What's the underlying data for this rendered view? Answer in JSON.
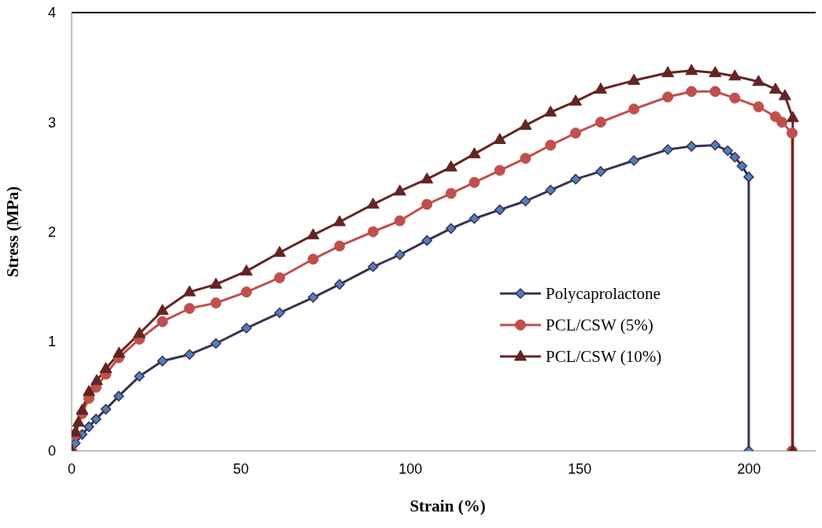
{
  "chart_data": {
    "type": "line",
    "xlabel": "Strain (%)",
    "ylabel": "Stress (MPa)",
    "xlim": [
      0,
      222
    ],
    "xticks": [
      0,
      50,
      100,
      150,
      200
    ],
    "ylim": [
      0,
      4
    ],
    "yticks": [
      0,
      1,
      2,
      3,
      4
    ],
    "grid": false,
    "legend": "center right",
    "series": [
      {
        "name": "Polycaprolactone",
        "color": "#3b3154",
        "marker": "diamond",
        "x": [
          0,
          1.1,
          3.1,
          5.1,
          7.2,
          10.1,
          13.9,
          20,
          26.8,
          34.8,
          42.6,
          51.6,
          61.4,
          71.3,
          79.1,
          89,
          96.9,
          104.9,
          112,
          118.9,
          126.4,
          134,
          141.4,
          148.8,
          156.2,
          166,
          176,
          183,
          190,
          193.7,
          195.8,
          197.9,
          199.9,
          199.9
        ],
        "values": [
          0,
          0.07,
          0.15,
          0.22,
          0.29,
          0.38,
          0.5,
          0.68,
          0.82,
          0.88,
          0.98,
          1.12,
          1.26,
          1.4,
          1.52,
          1.68,
          1.79,
          1.92,
          2.03,
          2.12,
          2.2,
          2.28,
          2.38,
          2.48,
          2.55,
          2.65,
          2.75,
          2.78,
          2.79,
          2.74,
          2.68,
          2.6,
          2.5,
          0
        ]
      },
      {
        "name": "PCL/CSW (5%)",
        "color": "#c0504d",
        "marker": "circle",
        "x": [
          0,
          1.1,
          3.1,
          5.1,
          7.2,
          10.1,
          13.9,
          20,
          26.8,
          34.8,
          42.6,
          51.6,
          61.4,
          71.3,
          79.1,
          89,
          96.9,
          104.9,
          112,
          118.9,
          126.4,
          134,
          141.4,
          148.8,
          156.2,
          166,
          176,
          183,
          190,
          195.8,
          202.8,
          207.8,
          209.7,
          212.7,
          212.7
        ],
        "values": [
          0,
          0.15,
          0.34,
          0.48,
          0.58,
          0.7,
          0.85,
          1.02,
          1.18,
          1.3,
          1.35,
          1.45,
          1.58,
          1.75,
          1.87,
          2.0,
          2.1,
          2.25,
          2.35,
          2.45,
          2.56,
          2.67,
          2.79,
          2.9,
          3.0,
          3.12,
          3.23,
          3.28,
          3.28,
          3.22,
          3.14,
          3.05,
          3.0,
          2.9,
          0
        ]
      },
      {
        "name": "PCL/CSW (10%)",
        "color": "#632523",
        "marker": "triangle",
        "x": [
          0,
          1.1,
          2.0,
          3.1,
          5.1,
          7.4,
          10.1,
          14,
          20,
          26.8,
          34.8,
          42.6,
          51.6,
          61.4,
          71.3,
          79.1,
          89,
          96.9,
          104.9,
          112,
          118.9,
          126.4,
          134,
          141.4,
          148.8,
          156.2,
          166,
          176,
          183,
          190,
          195.8,
          202.8,
          207.8,
          210.6,
          212.9,
          212.9
        ],
        "values": [
          0,
          0.17,
          0.26,
          0.37,
          0.54,
          0.64,
          0.75,
          0.89,
          1.07,
          1.28,
          1.45,
          1.52,
          1.64,
          1.81,
          1.97,
          2.09,
          2.25,
          2.37,
          2.48,
          2.59,
          2.71,
          2.84,
          2.97,
          3.09,
          3.19,
          3.3,
          3.38,
          3.45,
          3.47,
          3.45,
          3.42,
          3.37,
          3.3,
          3.24,
          3.04,
          0
        ]
      }
    ]
  }
}
